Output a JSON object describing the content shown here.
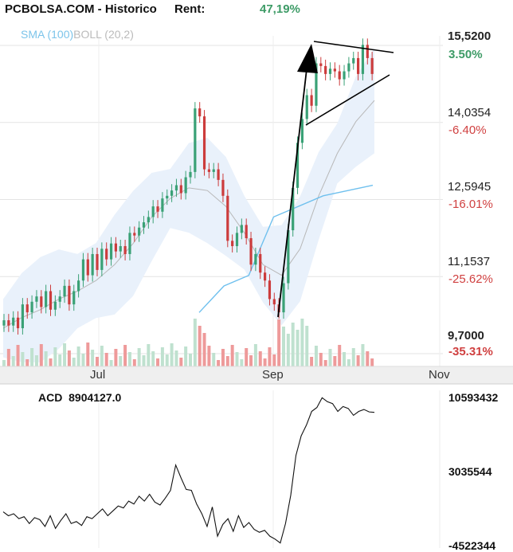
{
  "header": {
    "title": "PCBOLSA.COM - Historico",
    "rent_label": "Rent:",
    "rent_value": "47,19%"
  },
  "legend": {
    "sma": "SMA (100)",
    "boll": "BOLL (20,2)"
  },
  "indicator": {
    "label": "ACD",
    "value": "8904127.0"
  },
  "colors": {
    "up": "#3aa176",
    "down": "#cc3c3c",
    "sma": "#6fc0ee",
    "boll_band": "#e9f1fb",
    "boll_mid": "#b8b8b8",
    "vol": "#ee9a9a",
    "volume_up": "#bfe1cf",
    "text_green": "#3d9b66",
    "text_red": "#d04040"
  },
  "chart_data": [
    {
      "type": "candlestick",
      "title": "",
      "price_ticks": [
        "15,5200",
        "14,0354",
        "12,5945",
        "11,1537",
        "9,7000"
      ],
      "pct_ticks": [
        {
          "v": "3.50%",
          "dir": "up"
        },
        {
          "v": "-6.40%",
          "dir": "down"
        },
        {
          "v": "-16.01%",
          "dir": "down"
        },
        {
          "v": "-25.62%",
          "dir": "down"
        },
        {
          "v": "-35.31%",
          "dir": "down"
        }
      ],
      "x_ticks": [
        "Jul",
        "Sep",
        "Nov"
      ],
      "ylim": [
        9.7,
        15.52
      ],
      "series": [
        {
          "name": "Close",
          "values": [
            10.15,
            10.05,
            10.2,
            10.0,
            10.45,
            10.3,
            10.5,
            10.6,
            10.4,
            10.7,
            10.35,
            10.5,
            10.6,
            10.8,
            10.45,
            10.7,
            10.9,
            11.3,
            11.0,
            11.4,
            11.1,
            11.5,
            11.3,
            11.6,
            11.45,
            11.55,
            11.4,
            11.8,
            11.75,
            11.9,
            12.0,
            12.1,
            12.3,
            12.2,
            12.45,
            12.5,
            12.6,
            12.7,
            12.55,
            12.85,
            12.95,
            14.15,
            14.0,
            13.0,
            12.95,
            13.0,
            12.8,
            12.5,
            11.65,
            11.55,
            11.8,
            11.95,
            11.7,
            11.2,
            11.4,
            11.05,
            10.9,
            10.55,
            10.45,
            10.3,
            10.85,
            11.85,
            12.65,
            13.5,
            13.95,
            14.4,
            14.2,
            15.0,
            14.95,
            14.8,
            14.9,
            14.85,
            14.7,
            14.85,
            15.0,
            15.1,
            14.8,
            15.35,
            15.1,
            14.8
          ]
        },
        {
          "name": "SMA (100)",
          "values": [
            11.5,
            11.7,
            11.9,
            12.1,
            12.3,
            12.5,
            12.6,
            12.7
          ]
        },
        {
          "name": "BOLL (20,2)",
          "values": [
            10.0,
            10.2,
            10.35,
            10.55,
            10.7,
            10.9,
            11.2,
            11.6,
            12.1,
            12.45,
            12.65,
            12.6,
            12.3,
            11.8,
            11.2,
            11.0,
            11.5,
            12.5,
            13.3,
            13.9,
            14.3
          ]
        }
      ]
    },
    {
      "type": "line",
      "title": "",
      "ticks": [
        "10593432",
        "3035544",
        "-4522344"
      ],
      "ylim": [
        -4522344,
        10593432
      ],
      "series": [
        {
          "name": "ACD",
          "values": [
            -1300000,
            -1700000,
            -1500000,
            -2000000,
            -1800000,
            -2500000,
            -1900000,
            -2100000,
            -2800000,
            -1700000,
            -3000000,
            -2200000,
            -1500000,
            -2500000,
            -2300000,
            -2700000,
            -1800000,
            -2000000,
            -1500000,
            -1000000,
            -1700000,
            -1200000,
            -700000,
            -900000,
            -200000,
            -500000,
            300000,
            -200000,
            500000,
            -300000,
            -600000,
            100000,
            900000,
            3500000,
            2200000,
            1000000,
            900000,
            -500000,
            -1500000,
            -2800000,
            -800000,
            -3800000,
            -2600000,
            -2000000,
            -3300000,
            -1700000,
            -2900000,
            -2400000,
            -3100000,
            -3400000,
            -3200000,
            -3800000,
            -4100000,
            -4500000,
            -2500000,
            400000,
            4500000,
            6500000,
            7600000,
            9000000,
            9400000,
            10400000,
            10000000,
            9800000,
            9000000,
            9500000,
            9300000,
            8600000,
            9000000,
            9200000,
            8950000,
            8900000
          ]
        }
      ]
    }
  ]
}
